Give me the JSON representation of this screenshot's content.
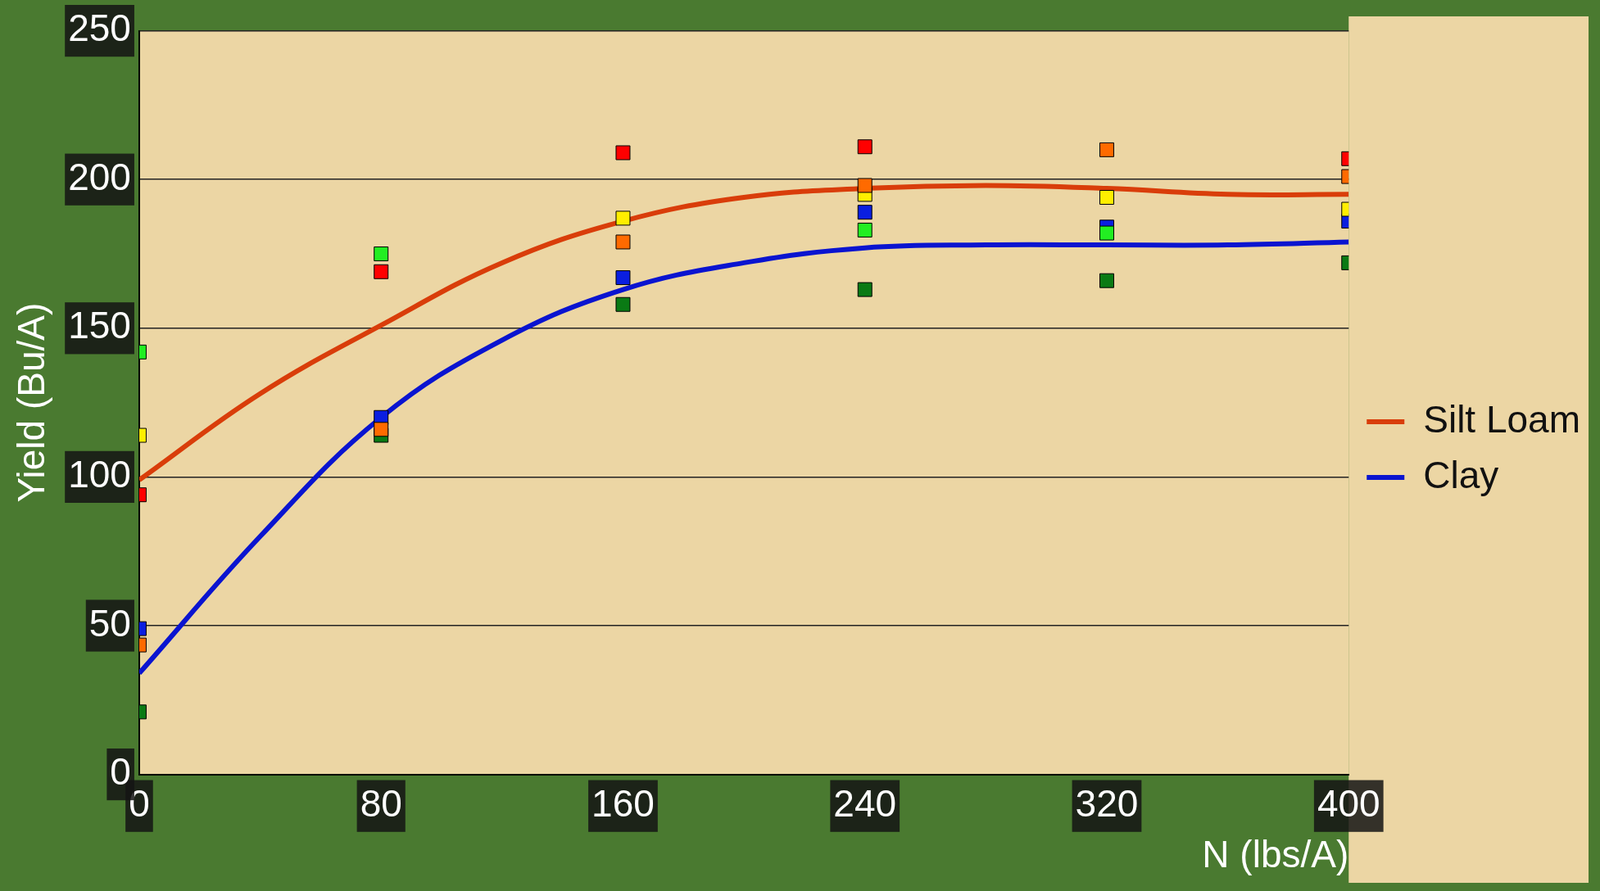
{
  "chart_data": {
    "type": "scatter",
    "x_label": "N (lbs/A)",
    "y_label": "Yield (Bu/A)",
    "xlim": [
      0,
      400
    ],
    "xticks": [
      0,
      80,
      160,
      240,
      320,
      400
    ],
    "ylim": [
      0,
      250
    ],
    "yticks": [
      0,
      50,
      100,
      150,
      200,
      250
    ],
    "grid": true,
    "legend": "right",
    "x": [
      0,
      80,
      160,
      240,
      320,
      400
    ],
    "series": [
      {
        "name": "Silt Loam",
        "type": "line",
        "line_style": "solid",
        "color": "#d93d0a",
        "x": [
          0,
          40,
          80,
          120,
          160,
          200,
          240,
          280,
          320,
          360,
          400
        ],
        "values": [
          99,
          128,
          151,
          172,
          186,
          194,
          197,
          198,
          197,
          195,
          195
        ]
      },
      {
        "name": "Clay",
        "type": "line",
        "line_style": "solid",
        "color": "#0a14d0",
        "x": [
          0,
          40,
          80,
          120,
          160,
          200,
          240,
          280,
          320,
          360,
          400
        ],
        "values": [
          34,
          80,
          120,
          146,
          163,
          172,
          177,
          178,
          178,
          178,
          179
        ]
      },
      {
        "type": "scatter",
        "marker": "square",
        "color": "#ff0000",
        "values": [
          94,
          169,
          209,
          211,
          null,
          207
        ]
      },
      {
        "type": "scatter",
        "marker": "square",
        "color": "#ff6a00",
        "values": [
          43.5,
          116,
          179,
          198,
          210,
          201
        ]
      },
      {
        "type": "scatter",
        "marker": "square",
        "color": "#ffee00",
        "values": [
          114,
          null,
          187,
          195,
          194,
          190
        ]
      },
      {
        "type": "scatter",
        "marker": "square",
        "color": "#22ee22",
        "values": [
          142,
          175,
          null,
          183,
          182,
          null
        ]
      },
      {
        "type": "scatter",
        "marker": "square",
        "color": "#0a7a14",
        "values": [
          21,
          114,
          158,
          163,
          166,
          172
        ]
      },
      {
        "type": "scatter",
        "marker": "square",
        "color": "#0a1ee0",
        "values": [
          49,
          120,
          167,
          189,
          184,
          186
        ]
      }
    ]
  }
}
